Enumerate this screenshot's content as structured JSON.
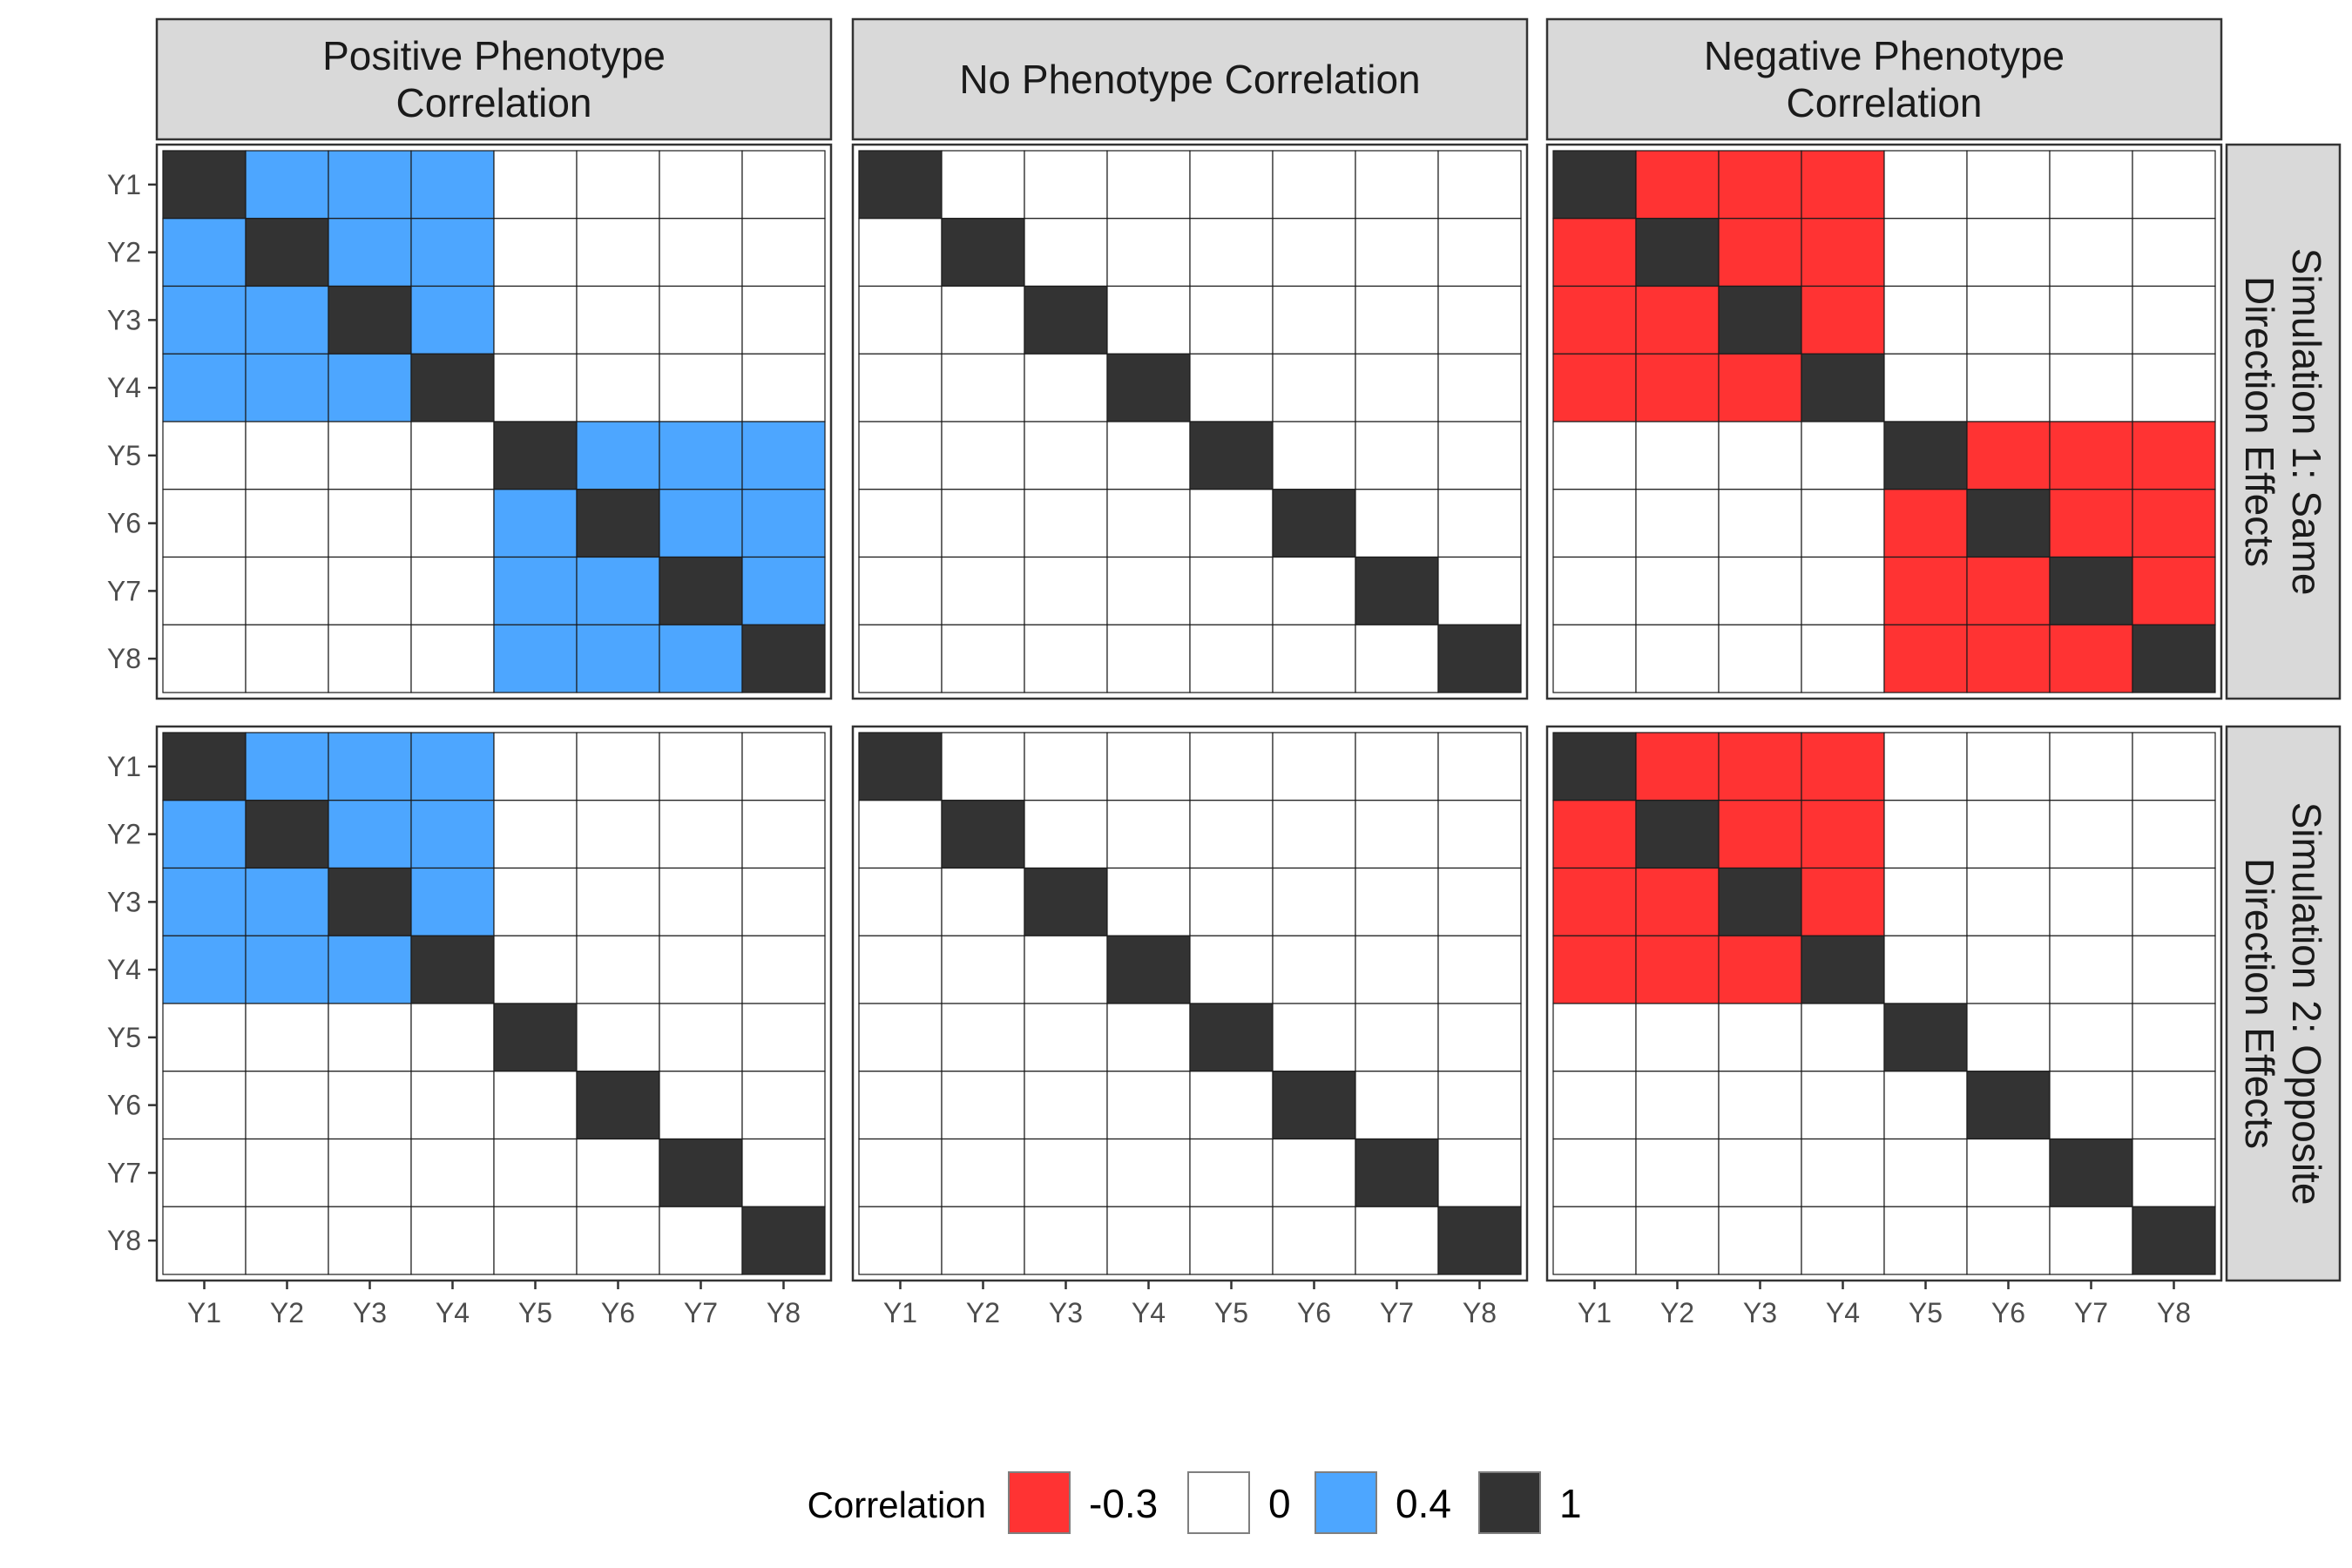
{
  "chart_data": {
    "type": "heatmap",
    "variables": [
      "Y1",
      "Y2",
      "Y3",
      "Y4",
      "Y5",
      "Y6",
      "Y7",
      "Y8"
    ],
    "columns": [
      {
        "label": [
          "Positive Phenotype",
          "Correlation"
        ],
        "rho": 0.4
      },
      {
        "label": [
          "No Phenotype Correlation"
        ],
        "rho": 0
      },
      {
        "label": [
          "Negative Phenotype",
          "Correlation"
        ],
        "rho": -0.3
      }
    ],
    "rows": [
      {
        "label": [
          "Simulation 1: Same",
          "Direction Effects"
        ],
        "blocks": [
          [
            0,
            1,
            2,
            3
          ],
          [
            4,
            5,
            6,
            7
          ]
        ]
      },
      {
        "label": [
          "Simulation 2: Opposite",
          "Direction Effects"
        ],
        "blocks": [
          [
            0,
            1,
            2,
            3
          ]
        ]
      }
    ],
    "legend": {
      "title": "Correlation",
      "position": "bottom",
      "entries": [
        {
          "label": "-0.3",
          "value": -0.3,
          "color": "#ff3333"
        },
        {
          "label": "0",
          "value": 0,
          "color": "#ffffff"
        },
        {
          "label": "0.4",
          "value": 0.4,
          "color": "#4da6ff"
        },
        {
          "label": "1",
          "value": 1,
          "color": "#333333"
        }
      ]
    }
  }
}
